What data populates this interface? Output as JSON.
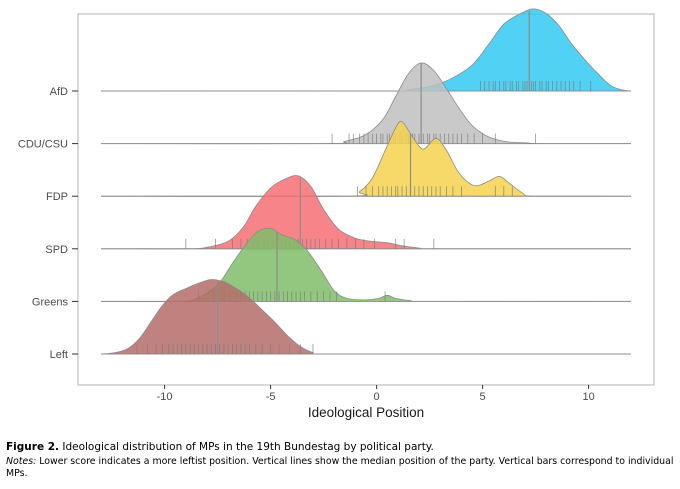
{
  "chart_data": {
    "type": "ridgeline",
    "xlabel": "Ideological Position",
    "ylabel": "",
    "xlim": [
      -13,
      12
    ],
    "xticks": [
      -10,
      -5,
      0,
      5,
      10
    ],
    "xtick_labels": [
      "-10",
      "-5",
      "0",
      "5",
      "10"
    ],
    "grid": false,
    "legend": "none",
    "series": [
      {
        "name": "AfD",
        "color": "#33c9f2",
        "median": 7.2,
        "density": [
          [
            -13,
            0
          ],
          [
            0.5,
            0
          ],
          [
            1.5,
            0.02
          ],
          [
            2.5,
            0.06
          ],
          [
            3.5,
            0.16
          ],
          [
            4.5,
            0.34
          ],
          [
            5.3,
            0.62
          ],
          [
            6,
            0.88
          ],
          [
            6.8,
            1.02
          ],
          [
            7.4,
            1.08
          ],
          [
            8,
            1.02
          ],
          [
            8.6,
            0.86
          ],
          [
            9.2,
            0.62
          ],
          [
            9.8,
            0.42
          ],
          [
            10.4,
            0.24
          ],
          [
            11,
            0.08
          ],
          [
            11.5,
            0.02
          ],
          [
            12,
            0
          ]
        ],
        "mp_positions": [
          4.9,
          5.1,
          5.3,
          5.5,
          5.6,
          5.8,
          6.0,
          6.1,
          6.3,
          6.4,
          6.6,
          6.7,
          6.9,
          7.0,
          7.1,
          7.3,
          7.4,
          7.5,
          7.7,
          7.8,
          8.0,
          8.1,
          8.3,
          8.5,
          8.7,
          8.9,
          9.1,
          9.3,
          9.6,
          10.1
        ]
      },
      {
        "name": "CDU/CSU",
        "color": "#bfbfbf",
        "median": 2.1,
        "density": [
          [
            -13,
            0
          ],
          [
            -2.5,
            0
          ],
          [
            -1.5,
            0.03
          ],
          [
            -0.5,
            0.12
          ],
          [
            0.3,
            0.32
          ],
          [
            0.9,
            0.62
          ],
          [
            1.5,
            0.92
          ],
          [
            2.1,
            1.06
          ],
          [
            2.7,
            0.96
          ],
          [
            3.3,
            0.72
          ],
          [
            3.9,
            0.46
          ],
          [
            4.5,
            0.24
          ],
          [
            5.2,
            0.1
          ],
          [
            6,
            0.03
          ],
          [
            7,
            0.01
          ],
          [
            8,
            0
          ],
          [
            12,
            0
          ]
        ],
        "mp_positions": [
          -2.1,
          -1.3,
          -1.1,
          -0.8,
          -0.6,
          -0.4,
          -0.2,
          0.0,
          0.2,
          0.3,
          0.5,
          0.6,
          0.8,
          0.9,
          1.1,
          1.2,
          1.4,
          1.5,
          1.7,
          1.8,
          2.0,
          2.1,
          2.2,
          2.4,
          2.5,
          2.7,
          2.8,
          3.0,
          3.2,
          3.4,
          3.6,
          3.8,
          4.0,
          4.3,
          4.6,
          5.0,
          5.6,
          7.5
        ]
      },
      {
        "name": "FDP",
        "color": "#f4d24e",
        "median": 1.6,
        "density": [
          [
            -13,
            0
          ],
          [
            -1.5,
            0
          ],
          [
            -0.8,
            0.06
          ],
          [
            -0.2,
            0.24
          ],
          [
            0.4,
            0.6
          ],
          [
            0.9,
            0.9
          ],
          [
            1.2,
            0.98
          ],
          [
            1.7,
            0.78
          ],
          [
            2.2,
            0.62
          ],
          [
            2.8,
            0.76
          ],
          [
            3.3,
            0.6
          ],
          [
            3.9,
            0.3
          ],
          [
            4.6,
            0.14
          ],
          [
            5.3,
            0.2
          ],
          [
            5.8,
            0.26
          ],
          [
            6.3,
            0.16
          ],
          [
            6.9,
            0.04
          ],
          [
            7.5,
            0
          ],
          [
            12,
            0
          ]
        ],
        "mp_positions": [
          -0.9,
          -0.5,
          -0.2,
          0.1,
          0.3,
          0.5,
          0.7,
          0.9,
          1.0,
          1.2,
          1.4,
          1.6,
          1.8,
          2.0,
          2.2,
          2.4,
          2.6,
          2.8,
          3.0,
          3.3,
          3.6,
          4.0,
          5.6,
          6.0,
          6.4
        ]
      },
      {
        "name": "SPD",
        "color": "#f56f73",
        "median": -3.6,
        "density": [
          [
            -13,
            0
          ],
          [
            -9,
            0
          ],
          [
            -8,
            0.02
          ],
          [
            -7,
            0.1
          ],
          [
            -6.3,
            0.28
          ],
          [
            -5.7,
            0.56
          ],
          [
            -5,
            0.8
          ],
          [
            -4.3,
            0.92
          ],
          [
            -3.7,
            0.96
          ],
          [
            -3.1,
            0.82
          ],
          [
            -2.5,
            0.52
          ],
          [
            -1.8,
            0.26
          ],
          [
            -1,
            0.14
          ],
          [
            -0.3,
            0.1
          ],
          [
            0.5,
            0.08
          ],
          [
            1.2,
            0.04
          ],
          [
            2,
            0.01
          ],
          [
            3,
            0
          ],
          [
            12,
            0
          ]
        ],
        "mp_positions": [
          -9.0,
          -7.6,
          -6.8,
          -6.4,
          -6.1,
          -5.8,
          -5.6,
          -5.3,
          -5.1,
          -4.9,
          -4.7,
          -4.5,
          -4.3,
          -4.1,
          -3.9,
          -3.7,
          -3.5,
          -3.3,
          -3.1,
          -2.9,
          -2.7,
          -2.4,
          -2.1,
          -1.8,
          -1.4,
          -1.0,
          -0.6,
          -0.1,
          0.9,
          1.3,
          2.7
        ]
      },
      {
        "name": "Greens",
        "color": "#80bd6a",
        "median": -4.7,
        "density": [
          [
            -13,
            0
          ],
          [
            -9.5,
            0
          ],
          [
            -8.5,
            0.04
          ],
          [
            -7.5,
            0.22
          ],
          [
            -6.8,
            0.5
          ],
          [
            -6.2,
            0.74
          ],
          [
            -5.6,
            0.92
          ],
          [
            -5,
            0.96
          ],
          [
            -4.5,
            0.88
          ],
          [
            -3.9,
            0.82
          ],
          [
            -3.3,
            0.68
          ],
          [
            -2.6,
            0.4
          ],
          [
            -2,
            0.14
          ],
          [
            -1.4,
            0.04
          ],
          [
            -0.6,
            0.02
          ],
          [
            0.1,
            0.04
          ],
          [
            0.5,
            0.08
          ],
          [
            0.9,
            0.04
          ],
          [
            1.6,
            0.01
          ],
          [
            2.5,
            0
          ],
          [
            12,
            0
          ]
        ],
        "mp_positions": [
          -8.4,
          -7.7,
          -7.2,
          -6.9,
          -6.6,
          -6.4,
          -6.2,
          -6.0,
          -5.8,
          -5.6,
          -5.4,
          -5.2,
          -5.0,
          -4.8,
          -4.6,
          -4.4,
          -4.2,
          -4.0,
          -3.8,
          -3.6,
          -3.4,
          -3.1,
          -2.8,
          -2.5,
          -2.2,
          -1.9,
          0.4
        ]
      },
      {
        "name": "Left",
        "color": "#b56c68",
        "median": -7.5,
        "density": [
          [
            -13,
            0
          ],
          [
            -12.5,
            0.01
          ],
          [
            -11.8,
            0.06
          ],
          [
            -11.2,
            0.2
          ],
          [
            -10.6,
            0.44
          ],
          [
            -10.1,
            0.64
          ],
          [
            -9.6,
            0.78
          ],
          [
            -9,
            0.86
          ],
          [
            -8.4,
            0.93
          ],
          [
            -7.8,
            0.98
          ],
          [
            -7.2,
            0.95
          ],
          [
            -6.6,
            0.86
          ],
          [
            -6,
            0.74
          ],
          [
            -5.4,
            0.58
          ],
          [
            -4.8,
            0.42
          ],
          [
            -4.2,
            0.24
          ],
          [
            -3.6,
            0.1
          ],
          [
            -3,
            0.02
          ],
          [
            -2.4,
            0
          ],
          [
            12,
            0
          ]
        ],
        "mp_positions": [
          -11.3,
          -10.8,
          -10.4,
          -10.1,
          -9.8,
          -9.6,
          -9.4,
          -9.2,
          -9.0,
          -8.8,
          -8.6,
          -8.4,
          -8.2,
          -8.0,
          -7.8,
          -7.6,
          -7.4,
          -7.2,
          -7.0,
          -6.8,
          -6.6,
          -6.4,
          -6.2,
          -6.0,
          -5.7,
          -5.4,
          -5.0,
          -4.6,
          -4.1,
          -3.6,
          -3.0
        ]
      }
    ]
  },
  "caption": {
    "figure_label": "Figure 2.",
    "title": "Ideological distribution of MPs in the 19th Bundestag by political party.",
    "notes_label": "Notes:",
    "notes_text": "Lower score indicates a more leftist position. Vertical lines show the median position of the party. Vertical bars correspond to individual MPs."
  }
}
